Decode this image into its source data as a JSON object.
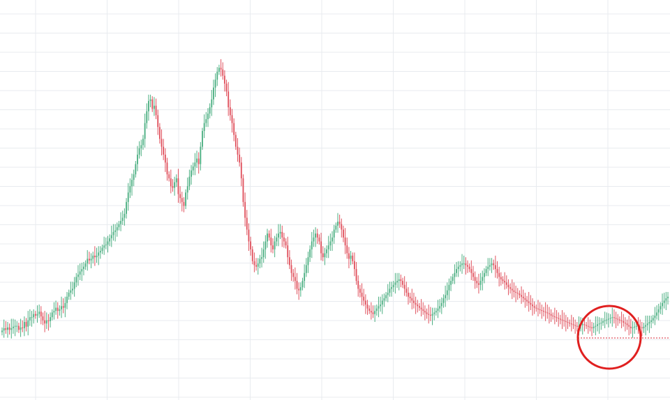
{
  "chart_data": {
    "type": "candlestick",
    "title": "",
    "xlabel": "",
    "ylabel": "",
    "grid": true,
    "ylim": [
      0,
      100
    ],
    "colors": {
      "up": "#4caf82",
      "down": "#e0525e",
      "grid": "#e8ebef",
      "level": "#e0525e",
      "highlight": "#e02020"
    },
    "close": [
      87,
      90,
      88,
      91,
      88,
      90,
      92,
      93,
      93,
      88,
      91,
      90,
      98,
      92,
      100,
      104,
      104,
      108,
      106,
      108,
      111,
      105,
      100,
      96,
      100,
      99,
      104,
      110,
      112,
      116,
      112,
      114,
      118,
      116,
      122,
      130,
      135,
      138,
      140,
      148,
      155,
      158,
      162,
      165,
      168,
      172,
      178,
      176,
      178,
      182,
      180,
      182,
      186,
      188,
      192,
      195,
      196,
      200,
      204,
      208,
      212,
      214,
      218,
      222,
      226,
      230,
      235,
      250,
      262,
      270,
      278,
      285,
      298,
      310,
      318,
      322,
      330,
      350,
      365,
      378,
      380,
      368,
      372,
      360,
      345,
      330,
      320,
      310,
      300,
      285,
      280,
      270,
      268,
      275,
      280,
      260,
      255,
      250,
      245,
      262,
      270,
      282,
      290,
      295,
      300,
      305,
      298,
      320,
      340,
      350,
      355,
      362,
      370,
      380,
      395,
      405,
      415,
      420,
      418,
      410,
      400,
      390,
      370,
      360,
      350,
      335,
      320,
      310,
      300,
      280,
      250,
      230,
      215,
      200,
      190,
      175,
      170,
      168,
      172,
      178,
      180,
      190,
      200,
      210,
      205,
      195,
      190,
      200,
      205,
      210,
      212,
      205,
      200,
      195,
      180,
      170,
      160,
      155,
      150,
      140,
      138,
      142,
      150,
      160,
      170,
      180,
      190,
      200,
      205,
      210,
      205,
      200,
      185,
      180,
      185,
      190,
      195,
      200,
      205,
      215,
      220,
      225,
      222,
      215,
      205,
      195,
      185,
      178,
      182,
      175,
      165,
      150,
      140,
      135,
      130,
      125,
      120,
      115,
      112,
      110,
      108,
      112,
      115,
      118,
      120,
      125,
      128,
      132,
      135,
      140,
      142,
      145,
      148,
      150,
      152,
      150,
      145,
      140,
      135,
      130,
      128,
      125,
      122,
      120,
      118,
      116,
      114,
      112,
      110,
      108,
      107,
      106,
      108,
      110,
      112,
      115,
      118,
      122,
      128,
      132,
      138,
      145,
      150,
      155,
      160,
      165,
      168,
      170,
      172,
      172,
      170,
      168,
      165,
      160,
      155,
      150,
      147,
      145,
      150,
      155,
      160,
      165,
      168,
      170,
      172,
      170,
      165,
      160,
      155,
      152,
      150,
      148,
      145,
      142,
      140,
      138,
      136,
      135,
      134,
      132,
      130,
      128,
      126,
      124,
      122,
      120,
      118,
      116,
      115,
      114,
      113,
      112,
      111,
      110,
      109,
      108,
      106,
      105,
      104,
      103,
      102,
      101,
      100,
      99,
      98,
      97,
      96,
      95,
      94,
      93,
      92,
      93,
      94,
      95,
      94,
      93,
      92,
      91,
      90,
      92,
      93,
      95,
      96,
      97,
      99,
      100,
      101,
      102,
      103,
      104,
      103,
      102,
      101,
      100,
      99,
      97,
      96,
      94,
      92,
      90,
      91,
      92,
      93,
      92,
      91,
      90,
      92,
      94,
      96,
      98,
      100,
      103,
      106,
      110,
      114,
      118,
      122,
      125,
      128,
      130
    ]
  }
}
